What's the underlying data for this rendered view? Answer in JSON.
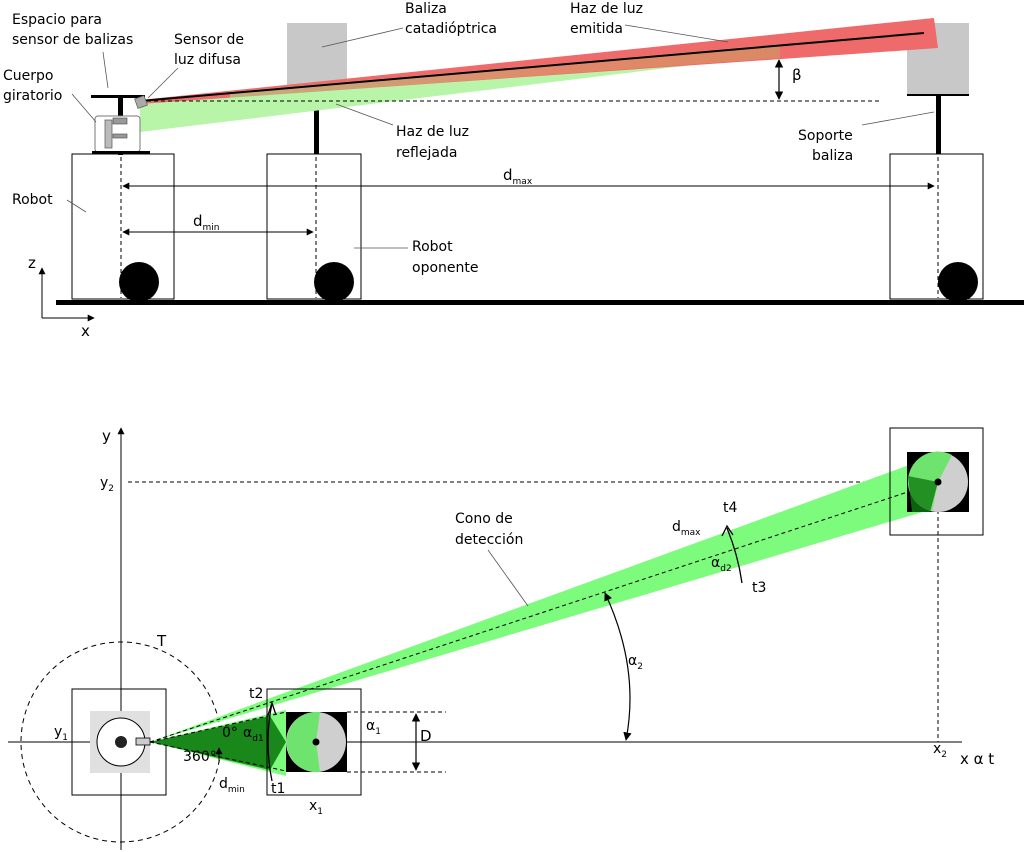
{
  "colors": {
    "reflected_beam": "#b9f5a9",
    "emitted_beam": "#ef5b5b",
    "cone": "#7dfb7d",
    "dark_green": "#0f7a0f",
    "beacon_gray": "#c8c8c8",
    "light_gray": "#e0e0e0"
  },
  "side_view": {
    "label_space": "Espacio para",
    "label_space2": "sensor de balizas",
    "label_sensor": "Sensor de",
    "label_sensor2": "luz difusa",
    "label_beacon": "Baliza",
    "label_beacon2": "catadióptrica",
    "label_emitted": "Haz de luz",
    "label_emitted2": "emitida",
    "label_body": "Cuerpo",
    "label_body2": "giratorio",
    "label_beta": "β",
    "label_reflected": "Haz de luz",
    "label_reflected2": "reflejada",
    "label_support": "Soporte",
    "label_support2": "baliza",
    "label_robot": "Robot",
    "label_dmax": "d",
    "label_dmax_sub": "max",
    "label_dmin": "d",
    "label_dmin_sub": "min",
    "label_opponent": "Robot",
    "label_opponent2": "oponente",
    "axis_z": "z",
    "axis_x": "x"
  },
  "top_view": {
    "axis_y": "y",
    "label_y2": "y",
    "label_y2_sub": "2",
    "label_y1": "y",
    "label_y1_sub": "1",
    "label_cone": "Cono de",
    "label_cone2": "detección",
    "label_dmax": "d",
    "label_dmax_sub": "max",
    "label_t4": "t4",
    "label_t3": "t3",
    "label_alpha_d2": "α",
    "label_alpha_d2_sub": "d2",
    "label_alpha2": "α",
    "label_alpha2_sub": "2",
    "label_T": "T",
    "label_t2": "t2",
    "label_t1": "t1",
    "label_0deg": "0°",
    "label_360deg": "360°",
    "label_alpha_d1": "α",
    "label_alpha_d1_sub": "d1",
    "label_alpha1": "α",
    "label_alpha1_sub": "1",
    "label_D": "D",
    "label_dmin": "d",
    "label_dmin_sub": "min",
    "label_x1": "x",
    "label_x1_sub": "1",
    "label_x2": "x",
    "label_x2_sub": "2",
    "axis_labels": "x  α  t"
  }
}
